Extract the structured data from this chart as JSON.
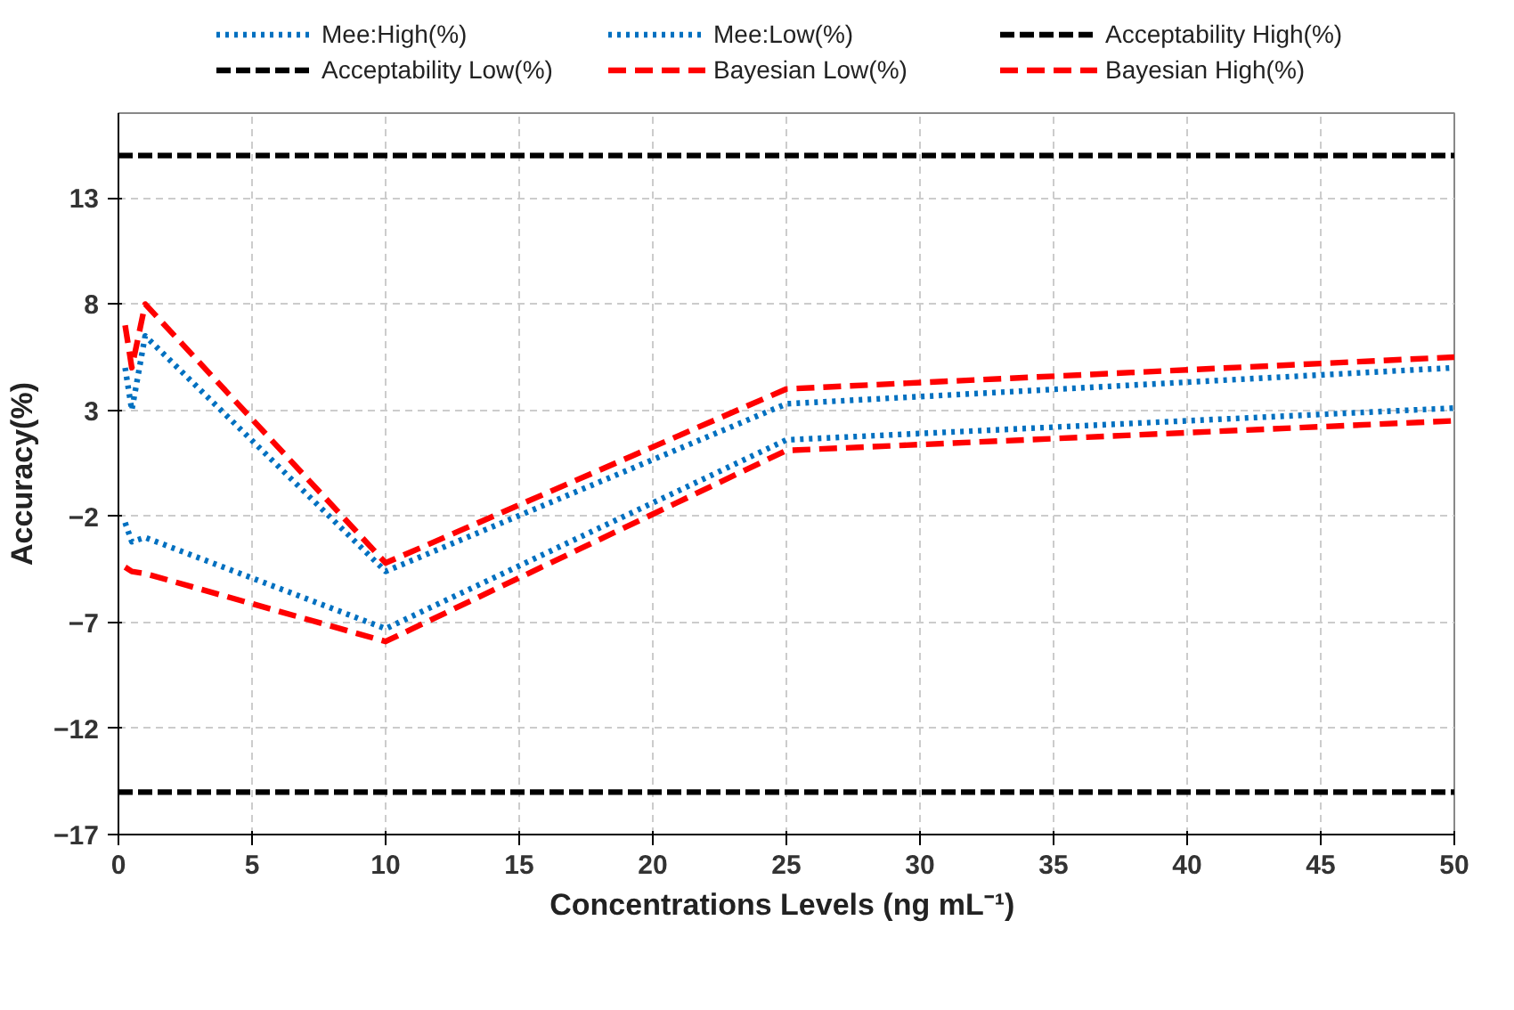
{
  "chart_data": {
    "type": "line",
    "xlabel": "Concentrations Levels  (ng mL⁻¹)",
    "ylabel": "Accuracy(%)",
    "xlim": [
      0,
      50
    ],
    "xticks": [
      0,
      5,
      10,
      15,
      20,
      25,
      30,
      35,
      40,
      45,
      50
    ],
    "ylim": [
      -17,
      17
    ],
    "yticks": [
      -17,
      -12,
      -7,
      -2,
      3,
      8,
      13
    ],
    "grid": true,
    "legend": "top",
    "marker": "none",
    "series": [
      {
        "name": "Mee:High(%)",
        "color": "#0070c0",
        "line_style": "dotted",
        "x": [
          0.25,
          0.5,
          1,
          10,
          25,
          50
        ],
        "values": [
          5.0,
          3.0,
          6.5,
          -4.6,
          3.3,
          5.0
        ]
      },
      {
        "name": "Mee:Low(%)",
        "color": "#0070c0",
        "line_style": "dotted",
        "x": [
          0.25,
          0.5,
          1,
          10,
          25,
          50
        ],
        "values": [
          -2.3,
          -3.2,
          -3.0,
          -7.3,
          1.6,
          3.1
        ]
      },
      {
        "name": "Acceptability High(%)",
        "color": "#000000",
        "line_style": "dashed",
        "x": [
          0,
          50
        ],
        "values": [
          15,
          15
        ]
      },
      {
        "name": "Acceptability Low(%)",
        "color": "#000000",
        "line_style": "dashed",
        "x": [
          0,
          50
        ],
        "values": [
          -15,
          -15
        ]
      },
      {
        "name": "Bayesian Low(%)",
        "color": "#ff0000",
        "line_style": "dashed",
        "x": [
          0.25,
          0.5,
          1,
          10,
          25,
          50
        ],
        "values": [
          -4.4,
          -4.6,
          -4.7,
          -7.9,
          1.1,
          2.5
        ]
      },
      {
        "name": "Bayesian High(%)",
        "color": "#ff0000",
        "line_style": "dashed",
        "x": [
          0.25,
          0.5,
          1,
          10,
          25,
          50
        ],
        "values": [
          7.0,
          5.0,
          8.0,
          -4.2,
          4.0,
          5.5
        ]
      }
    ]
  }
}
